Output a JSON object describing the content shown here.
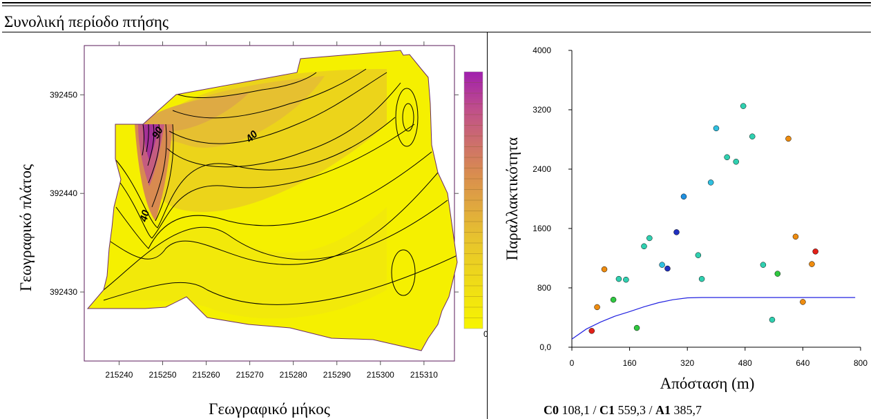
{
  "page": {
    "title": "Συνολική περίοδο πτήσης",
    "caption": {
      "c0_label": "C0",
      "c0_value": "108,1",
      "c1_label": "C1",
      "c1_value": "559,3",
      "a1_label": "A1",
      "a1_value": "385,7",
      "sep": "/"
    }
  },
  "chart_data": [
    {
      "type": "contour",
      "xlabel": "Γεωγραφικό μήκος",
      "ylabel": "Γεωγραφικό πλάτος",
      "xticks": [
        "215240",
        "215250",
        "215260",
        "215270",
        "215280",
        "215290",
        "215300",
        "215310"
      ],
      "yticks": [
        "392450",
        "392440",
        "392430"
      ],
      "xlim": [
        215232,
        215317
      ],
      "ylim": [
        392423,
        392455
      ],
      "contour_labels": [
        "90",
        "40",
        "40"
      ],
      "colorbar": {
        "colors": [
          "#f3f300",
          "#a020a0"
        ],
        "visible_label": "0"
      },
      "colors": {
        "low": "#f3f300",
        "mid": "#e1b23e",
        "high": "#9a1e9a"
      }
    },
    {
      "type": "scatter",
      "xlabel": "Απόσταση (m)",
      "ylabel": "Παραλλακτικότητα",
      "xticks": [
        "0",
        "160",
        "320",
        "480",
        "640",
        "800"
      ],
      "yticks": [
        "0,0",
        "800",
        "1600",
        "2400",
        "3200",
        "4000"
      ],
      "xlim": [
        0,
        800
      ],
      "ylim": [
        0,
        4000
      ],
      "points": [
        {
          "x": 55,
          "y": 220,
          "color": "#e22018"
        },
        {
          "x": 70,
          "y": 540,
          "color": "#ee8c10"
        },
        {
          "x": 90,
          "y": 1050,
          "color": "#ee8c10"
        },
        {
          "x": 115,
          "y": 640,
          "color": "#30c840"
        },
        {
          "x": 130,
          "y": 920,
          "color": "#30d0b0"
        },
        {
          "x": 150,
          "y": 910,
          "color": "#30d0b0"
        },
        {
          "x": 180,
          "y": 260,
          "color": "#30c840"
        },
        {
          "x": 200,
          "y": 1360,
          "color": "#30d0b0"
        },
        {
          "x": 215,
          "y": 1470,
          "color": "#30d0b0"
        },
        {
          "x": 250,
          "y": 1110,
          "color": "#30c0e0"
        },
        {
          "x": 265,
          "y": 1060,
          "color": "#2030c0"
        },
        {
          "x": 290,
          "y": 1550,
          "color": "#2030c0"
        },
        {
          "x": 310,
          "y": 2030,
          "color": "#2090e0"
        },
        {
          "x": 350,
          "y": 1240,
          "color": "#30d0b0"
        },
        {
          "x": 360,
          "y": 920,
          "color": "#30d0b0"
        },
        {
          "x": 385,
          "y": 2220,
          "color": "#30c0e0"
        },
        {
          "x": 400,
          "y": 2950,
          "color": "#30c0e0"
        },
        {
          "x": 430,
          "y": 2560,
          "color": "#30d0b0"
        },
        {
          "x": 455,
          "y": 2500,
          "color": "#30d0b0"
        },
        {
          "x": 475,
          "y": 3250,
          "color": "#30d0b0"
        },
        {
          "x": 500,
          "y": 2840,
          "color": "#30d0b0"
        },
        {
          "x": 530,
          "y": 1110,
          "color": "#30d0b0"
        },
        {
          "x": 555,
          "y": 370,
          "color": "#30d0b0"
        },
        {
          "x": 570,
          "y": 990,
          "color": "#30c840"
        },
        {
          "x": 600,
          "y": 2810,
          "color": "#ee8c10"
        },
        {
          "x": 620,
          "y": 1490,
          "color": "#ee8c10"
        },
        {
          "x": 640,
          "y": 610,
          "color": "#ee8c10"
        },
        {
          "x": 665,
          "y": 1120,
          "color": "#ee8c10"
        },
        {
          "x": 675,
          "y": 1290,
          "color": "#e22018"
        }
      ],
      "model_line": {
        "color": "#2020e0",
        "x": [
          0,
          40,
          80,
          120,
          160,
          200,
          240,
          280,
          320,
          360,
          400,
          480,
          560,
          640,
          720,
          785
        ],
        "y": [
          110,
          245,
          340,
          420,
          480,
          545,
          600,
          640,
          665,
          670,
          670,
          670,
          670,
          670,
          670,
          670
        ]
      }
    }
  ]
}
